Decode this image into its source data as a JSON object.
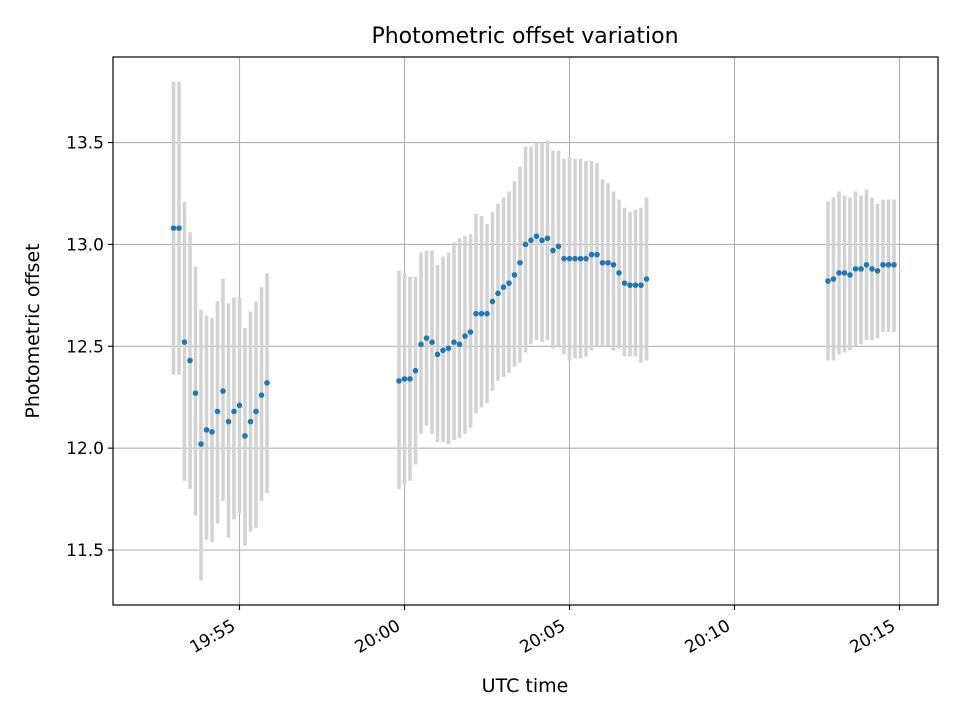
{
  "colors": {
    "point": "#1f77b4",
    "errorbar": "#d3d3d3",
    "grid": "#b0b0b0",
    "axes": "#000000",
    "background": "#ffffff"
  },
  "chart_data": {
    "type": "scatter",
    "title": "Photometric offset variation",
    "xlabel": "UTC time",
    "ylabel": "Photometric offset",
    "xlim": [
      "19:51:10",
      "20:16:10"
    ],
    "ylim": [
      11.23,
      13.92
    ],
    "xticks": [
      "19:55",
      "20:00",
      "20:05",
      "20:10",
      "20:15"
    ],
    "yticks": [
      11.5,
      12.0,
      12.5,
      13.0,
      13.5
    ],
    "grid": true,
    "legend": "none",
    "series": [
      {
        "x": [
          "19:53:00",
          "19:53:10",
          "19:53:20",
          "19:53:30",
          "19:53:40",
          "19:53:50",
          "19:54:00",
          "19:54:10",
          "19:54:20",
          "19:54:30",
          "19:54:40",
          "19:54:50",
          "19:55:00",
          "19:55:10",
          "19:55:20",
          "19:55:30",
          "19:55:40",
          "19:55:50",
          "19:59:50",
          "20:00:00",
          "20:00:10",
          "20:00:20",
          "20:00:30",
          "20:00:40",
          "20:00:50",
          "20:01:00",
          "20:01:10",
          "20:01:20",
          "20:01:30",
          "20:01:40",
          "20:01:50",
          "20:02:00",
          "20:02:10",
          "20:02:20",
          "20:02:30",
          "20:02:40",
          "20:02:50",
          "20:03:00",
          "20:03:10",
          "20:03:20",
          "20:03:30",
          "20:03:40",
          "20:03:50",
          "20:04:00",
          "20:04:10",
          "20:04:20",
          "20:04:30",
          "20:04:40",
          "20:04:50",
          "20:05:00",
          "20:05:10",
          "20:05:20",
          "20:05:30",
          "20:05:40",
          "20:05:50",
          "20:06:00",
          "20:06:10",
          "20:06:20",
          "20:06:30",
          "20:06:40",
          "20:06:50",
          "20:07:00",
          "20:07:10",
          "20:07:20",
          "20:12:50",
          "20:13:00",
          "20:13:10",
          "20:13:20",
          "20:13:30",
          "20:13:40",
          "20:13:50",
          "20:14:00",
          "20:14:10",
          "20:14:20",
          "20:14:30",
          "20:14:40",
          "20:14:50"
        ],
        "y": [
          13.08,
          13.08,
          12.52,
          12.43,
          12.27,
          12.02,
          12.09,
          12.08,
          12.18,
          12.28,
          12.13,
          12.18,
          12.21,
          12.06,
          12.13,
          12.18,
          12.26,
          12.32,
          12.33,
          12.34,
          12.34,
          12.38,
          12.51,
          12.54,
          12.52,
          12.46,
          12.48,
          12.49,
          12.52,
          12.51,
          12.55,
          12.57,
          12.66,
          12.66,
          12.66,
          12.72,
          12.76,
          12.79,
          12.81,
          12.85,
          12.91,
          13.0,
          13.02,
          13.04,
          13.02,
          13.03,
          12.97,
          12.99,
          12.93,
          12.93,
          12.93,
          12.93,
          12.93,
          12.95,
          12.95,
          12.91,
          12.91,
          12.9,
          12.86,
          12.81,
          12.8,
          12.8,
          12.8,
          12.83,
          12.82,
          12.83,
          12.86,
          12.86,
          12.85,
          12.88,
          12.88,
          12.9,
          12.88,
          12.87,
          12.9,
          12.9,
          12.9
        ],
        "yerr_low": [
          12.36,
          12.36,
          11.84,
          11.8,
          11.67,
          11.35,
          11.55,
          11.54,
          11.63,
          11.74,
          11.56,
          11.65,
          11.68,
          11.52,
          11.59,
          11.61,
          11.74,
          11.78,
          11.8,
          11.82,
          11.84,
          11.92,
          12.07,
          12.11,
          12.07,
          12.03,
          12.03,
          12.02,
          12.04,
          12.05,
          12.07,
          12.1,
          12.17,
          12.2,
          12.22,
          12.28,
          12.33,
          12.35,
          12.37,
          12.4,
          12.42,
          12.47,
          12.51,
          12.53,
          12.52,
          12.53,
          12.49,
          12.5,
          12.46,
          12.43,
          12.44,
          12.44,
          12.45,
          12.48,
          12.5,
          12.5,
          12.5,
          12.48,
          12.49,
          12.45,
          12.45,
          12.45,
          12.42,
          12.43,
          12.43,
          12.43,
          12.46,
          12.47,
          12.48,
          12.5,
          12.51,
          12.53,
          12.53,
          12.54,
          12.57,
          12.57,
          12.57
        ],
        "yerr_high": [
          13.8,
          13.8,
          13.21,
          13.06,
          12.89,
          12.68,
          12.65,
          12.64,
          12.72,
          12.83,
          12.71,
          12.74,
          12.74,
          12.59,
          12.67,
          12.72,
          12.79,
          12.86,
          12.87,
          12.86,
          12.84,
          12.84,
          12.96,
          12.97,
          12.97,
          12.9,
          12.94,
          12.96,
          13.01,
          13.03,
          13.04,
          13.05,
          13.15,
          13.14,
          13.1,
          13.16,
          13.2,
          13.23,
          13.26,
          13.31,
          13.38,
          13.48,
          13.48,
          13.5,
          13.5,
          13.51,
          13.46,
          13.46,
          13.42,
          13.43,
          13.42,
          13.42,
          13.41,
          13.41,
          13.4,
          13.32,
          13.3,
          13.26,
          13.22,
          13.18,
          13.16,
          13.17,
          13.18,
          13.23,
          13.21,
          13.23,
          13.26,
          13.24,
          13.23,
          13.26,
          13.24,
          13.27,
          13.23,
          13.2,
          13.22,
          13.22,
          13.22
        ]
      }
    ]
  }
}
